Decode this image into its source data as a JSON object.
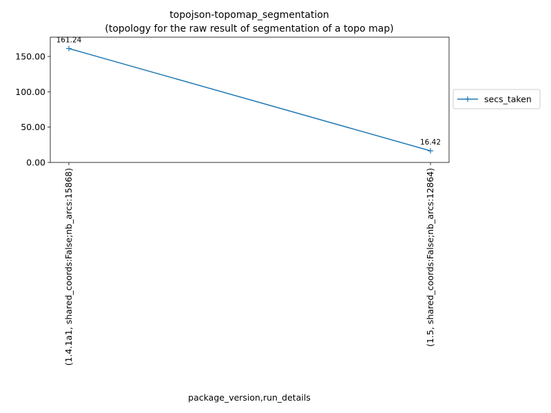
{
  "chart_data": {
    "type": "line",
    "title": "topojson-topomap_segmentation",
    "subtitle": "(topology for the raw result of segmentation of a topo map)",
    "xlabel": "package_version,run_details",
    "ylabel": "",
    "categories": [
      "(1.4.1a1, shared_coords:False;nb_arcs:15868)",
      "(1.5, shared_coords:False;nb_arcs:12864)"
    ],
    "series": [
      {
        "name": "secs_taken",
        "values": [
          161.24,
          16.42
        ],
        "color": "#1f77b4",
        "marker": "plus"
      }
    ],
    "data_labels": [
      "161.24",
      "16.42"
    ],
    "ylim": [
      0,
      177.28
    ],
    "yticks": [
      "0.00",
      "50.00",
      "100.00",
      "150.00"
    ],
    "ytick_values": [
      0,
      50,
      100,
      150
    ],
    "legend_placement": "right-outside",
    "grid": false
  }
}
